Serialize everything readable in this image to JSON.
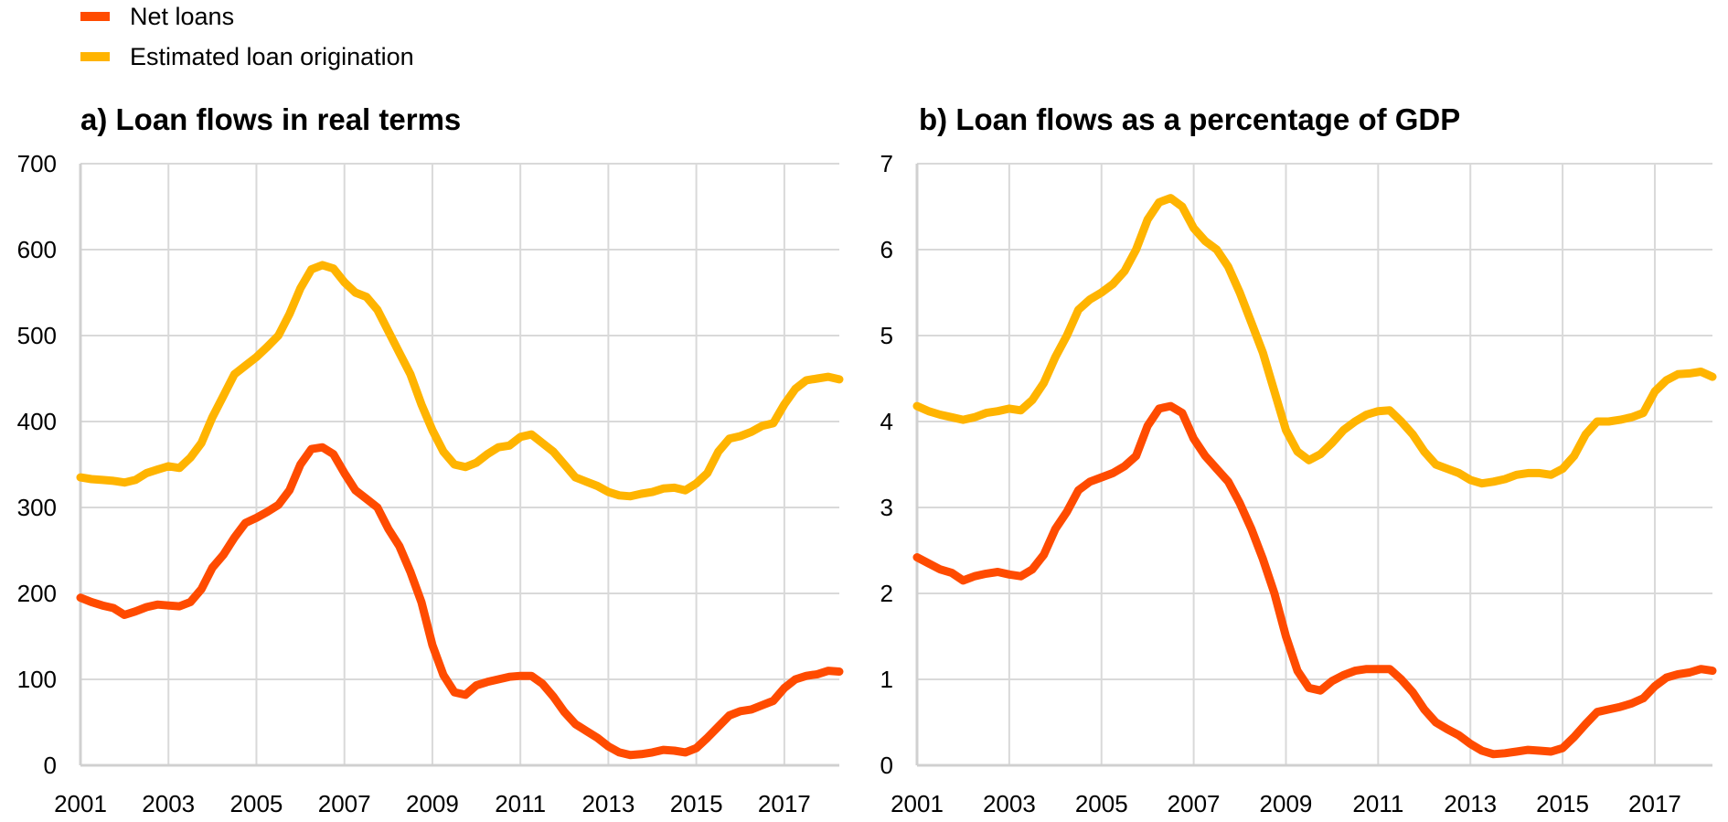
{
  "legend": [
    {
      "label": "Net loans",
      "color": "#FF4B00"
    },
    {
      "label": "Estimated loan origination",
      "color": "#FFB400"
    }
  ],
  "chart_data": [
    {
      "type": "line",
      "title": "a) Loan flows in real terms",
      "xlabel": "",
      "ylabel": "",
      "xlim": [
        2001,
        2018.25
      ],
      "ylim": [
        0,
        700
      ],
      "yticks": [
        0,
        100,
        200,
        300,
        400,
        500,
        600,
        700
      ],
      "xticks": [
        2001,
        2003,
        2005,
        2007,
        2009,
        2011,
        2013,
        2015,
        2017
      ],
      "grid": true,
      "x_start": 2001,
      "x_step": 0.25,
      "series": [
        {
          "name": "Net loans",
          "color": "#FF4B00",
          "values": [
            195,
            190,
            186,
            183,
            175,
            179,
            184,
            187,
            186,
            185,
            190,
            205,
            230,
            245,
            265,
            282,
            288,
            295,
            303,
            320,
            350,
            368,
            370,
            362,
            340,
            320,
            310,
            300,
            275,
            255,
            225,
            190,
            140,
            105,
            85,
            82,
            93,
            97,
            100,
            103,
            104,
            104,
            95,
            80,
            62,
            48,
            40,
            32,
            22,
            15,
            12,
            13,
            15,
            18,
            17,
            15,
            20,
            32,
            45,
            58,
            63,
            65,
            70,
            75,
            90,
            100,
            104,
            106,
            110,
            109
          ]
        },
        {
          "name": "Estimated loan origination",
          "color": "#FFB400",
          "values": [
            335,
            333,
            332,
            331,
            329,
            332,
            340,
            344,
            348,
            346,
            358,
            375,
            405,
            430,
            455,
            465,
            475,
            487,
            500,
            525,
            555,
            577,
            582,
            578,
            562,
            550,
            545,
            530,
            505,
            480,
            455,
            420,
            390,
            365,
            350,
            347,
            352,
            362,
            370,
            372,
            382,
            385,
            375,
            365,
            350,
            335,
            330,
            325,
            318,
            314,
            313,
            316,
            318,
            322,
            323,
            320,
            328,
            340,
            365,
            380,
            383,
            388,
            395,
            398,
            420,
            438,
            448,
            450,
            452,
            449
          ]
        }
      ]
    },
    {
      "type": "line",
      "title": "b) Loan flows as a percentage of GDP",
      "xlabel": "",
      "ylabel": "",
      "xlim": [
        2001,
        2018.25
      ],
      "ylim": [
        0,
        7
      ],
      "yticks": [
        0,
        1,
        2,
        3,
        4,
        5,
        6,
        7
      ],
      "xticks": [
        2001,
        2003,
        2005,
        2007,
        2009,
        2011,
        2013,
        2015,
        2017
      ],
      "grid": true,
      "x_start": 2001,
      "x_step": 0.25,
      "series": [
        {
          "name": "Net loans",
          "color": "#FF4B00",
          "values": [
            2.42,
            2.35,
            2.28,
            2.24,
            2.15,
            2.2,
            2.23,
            2.25,
            2.22,
            2.2,
            2.28,
            2.45,
            2.75,
            2.95,
            3.2,
            3.3,
            3.35,
            3.4,
            3.48,
            3.6,
            3.95,
            4.15,
            4.18,
            4.1,
            3.8,
            3.6,
            3.45,
            3.3,
            3.05,
            2.75,
            2.4,
            2.0,
            1.5,
            1.1,
            0.9,
            0.87,
            0.98,
            1.05,
            1.1,
            1.12,
            1.12,
            1.12,
            1.0,
            0.85,
            0.65,
            0.5,
            0.42,
            0.35,
            0.25,
            0.17,
            0.13,
            0.14,
            0.16,
            0.18,
            0.17,
            0.16,
            0.2,
            0.33,
            0.48,
            0.62,
            0.65,
            0.68,
            0.72,
            0.78,
            0.92,
            1.02,
            1.06,
            1.08,
            1.12,
            1.1
          ]
        },
        {
          "name": "Estimated loan origination",
          "color": "#FFB400",
          "values": [
            4.18,
            4.12,
            4.08,
            4.05,
            4.02,
            4.05,
            4.1,
            4.12,
            4.15,
            4.13,
            4.25,
            4.45,
            4.75,
            5.0,
            5.3,
            5.42,
            5.5,
            5.6,
            5.75,
            6.0,
            6.35,
            6.55,
            6.6,
            6.5,
            6.25,
            6.1,
            6.0,
            5.8,
            5.5,
            5.15,
            4.8,
            4.35,
            3.9,
            3.65,
            3.55,
            3.62,
            3.75,
            3.9,
            4.0,
            4.08,
            4.12,
            4.13,
            4.0,
            3.85,
            3.65,
            3.5,
            3.45,
            3.4,
            3.32,
            3.28,
            3.3,
            3.33,
            3.38,
            3.4,
            3.4,
            3.38,
            3.45,
            3.6,
            3.85,
            4.0,
            4.0,
            4.02,
            4.05,
            4.1,
            4.35,
            4.48,
            4.55,
            4.56,
            4.58,
            4.52
          ]
        }
      ]
    }
  ]
}
